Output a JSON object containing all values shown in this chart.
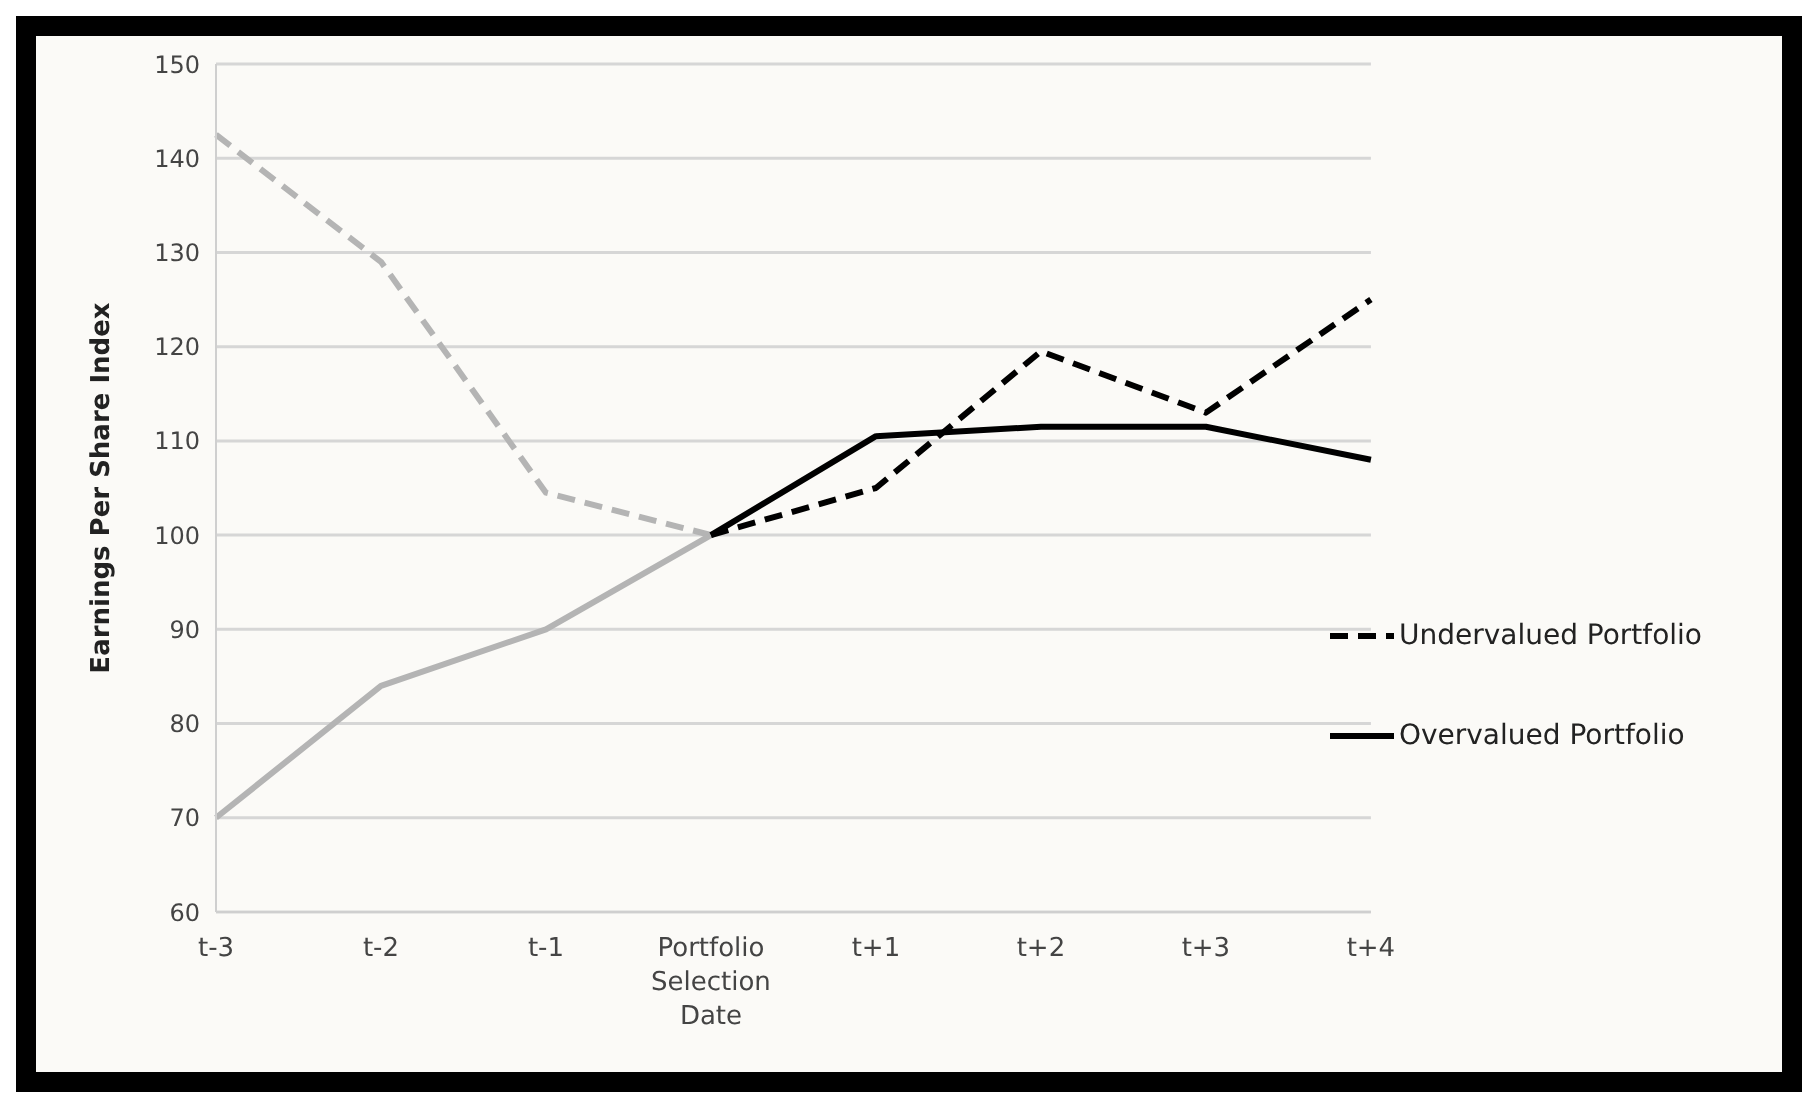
{
  "chart_data": {
    "type": "line",
    "ylabel": "Earnings Per Share Index",
    "categories": [
      "t-3",
      "t-2",
      "t-1",
      "Portfolio Selection Date",
      "t+1",
      "t+2",
      "t+3",
      "t+4"
    ],
    "series": [
      {
        "color": "#b4b4b4",
        "line_style": "dashed",
        "values": [
          142.5,
          129,
          104.5,
          100,
          null,
          null,
          null,
          null
        ]
      },
      {
        "color": "#b4b4b4",
        "line_style": "solid",
        "values": [
          70,
          84,
          90,
          100,
          null,
          null,
          null,
          null
        ]
      },
      {
        "name": "Undervalued Portfolio",
        "color": "#000000",
        "line_style": "dashed",
        "values": [
          null,
          null,
          null,
          100,
          105,
          119.5,
          113,
          125
        ]
      },
      {
        "name": "Overvalued Portfolio",
        "color": "#000000",
        "line_style": "solid",
        "values": [
          null,
          null,
          null,
          100,
          110.5,
          111.5,
          111.5,
          108
        ]
      }
    ],
    "ylim": [
      60,
      150
    ],
    "yticks": [
      60,
      70,
      80,
      90,
      100,
      110,
      120,
      130,
      140,
      150
    ],
    "grid": "y",
    "legend": "right",
    "marker": "none"
  }
}
